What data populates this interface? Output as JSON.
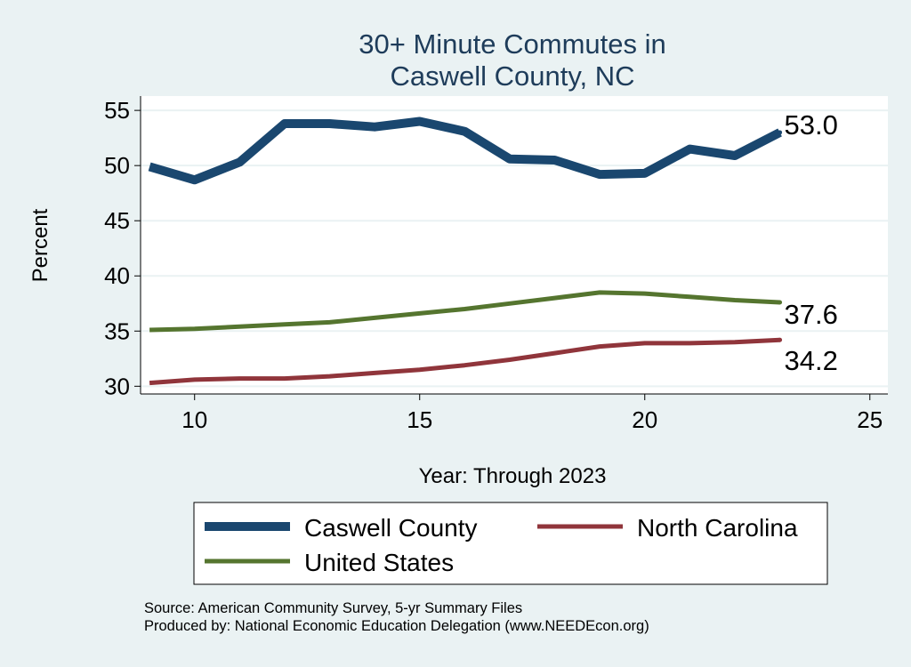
{
  "chart_data": {
    "type": "line",
    "title": [
      "30+ Minute Commutes in",
      "Caswell County, NC"
    ],
    "xlabel": "Year: Through 2023",
    "ylabel": "Percent",
    "xlim": [
      8.8,
      25.4
    ],
    "ylim": [
      29.3,
      56.3
    ],
    "xticks": [
      10,
      15,
      20,
      25
    ],
    "yticks": [
      30,
      35,
      40,
      45,
      50,
      55
    ],
    "grid": true,
    "legend_placement": "bottom",
    "x": [
      9,
      10,
      11,
      12,
      13,
      14,
      15,
      16,
      17,
      18,
      19,
      20,
      21,
      22,
      23
    ],
    "series": [
      {
        "name": "Caswell County",
        "color": "#1a476f",
        "values": [
          49.9,
          48.7,
          50.3,
          53.8,
          53.8,
          53.5,
          54.0,
          53.1,
          50.6,
          50.5,
          49.2,
          49.3,
          51.5,
          50.9,
          53.0
        ],
        "end_label": "53.0"
      },
      {
        "name": "North Carolina",
        "color": "#90353b",
        "values": [
          30.3,
          30.6,
          30.7,
          30.7,
          30.9,
          31.2,
          31.5,
          31.9,
          32.4,
          33.0,
          33.6,
          33.9,
          33.9,
          34.0,
          34.2
        ],
        "end_label": "34.2"
      },
      {
        "name": "United States",
        "color": "#55752f",
        "values": [
          35.1,
          35.2,
          35.4,
          35.6,
          35.8,
          36.2,
          36.6,
          37.0,
          37.5,
          38.0,
          38.5,
          38.4,
          38.1,
          37.8,
          37.6
        ],
        "end_label": "37.6"
      }
    ],
    "notes": [
      "Source: American Community Survey, 5-yr Summary Files",
      "Produced by: National Economic Education Delegation (www.NEEDEcon.org)"
    ]
  }
}
